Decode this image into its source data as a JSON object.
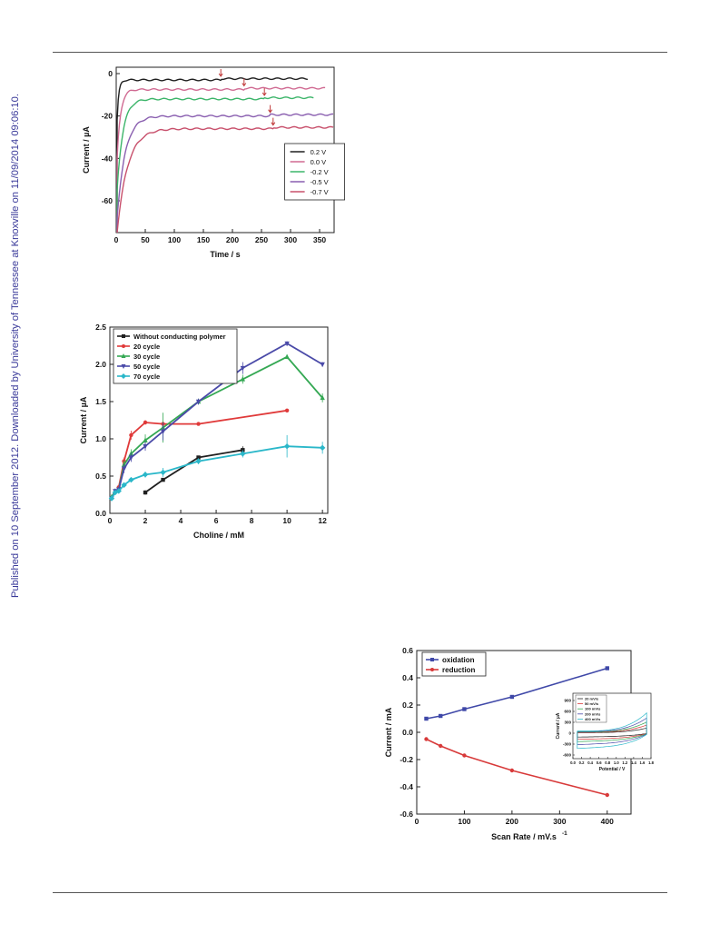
{
  "sidebar_text": "Published on 10 September 2012. Downloaded by University of Tennessee at Knoxville on 11/09/2014 09:06:10.",
  "colors": {
    "rule": "#555555",
    "sidebar_text": "#3b3b9a",
    "c_black": "#202020",
    "c_pink": "#d06a92",
    "c_green": "#3cb56a",
    "c_purple": "#8a5fb0",
    "c_rose": "#c8506c",
    "c_red": "#e03a3a",
    "c_green2": "#34a853",
    "c_blue": "#4a4aa8",
    "c_cyan": "#2ab7c9",
    "c_oxid": "#3f48a8",
    "c_red2": "#d83a3a",
    "arrow": "#c03a3a"
  },
  "chart_data": [
    {
      "type": "line",
      "xlabel": "Time / s",
      "ylabel": "Current / µA",
      "xlim": [
        0,
        375
      ],
      "ylim": [
        -75,
        3
      ],
      "xticks": [
        0,
        50,
        100,
        150,
        200,
        250,
        300,
        350
      ],
      "yticks": [
        0,
        -20,
        -40,
        -60
      ],
      "legend_position": "center-right",
      "series": [
        {
          "name": "0.2 V",
          "color_key": "c_black",
          "steady": -3,
          "initial": -22,
          "tau": 3,
          "end": 330,
          "arrow_x": 180
        },
        {
          "name": "0.0 V",
          "color_key": "c_pink",
          "steady": -7.5,
          "initial": -40,
          "tau": 6,
          "end": 360,
          "arrow_x": 220
        },
        {
          "name": "-0.2 V",
          "color_key": "c_green",
          "steady": -12,
          "initial": -55,
          "tau": 10,
          "end": 340,
          "arrow_x": 255
        },
        {
          "name": "-0.5 V",
          "color_key": "c_purple",
          "steady": -20,
          "initial": -68,
          "tau": 14,
          "end": 375,
          "arrow_x": 265
        },
        {
          "name": "-0.7 V",
          "color_key": "c_rose",
          "steady": -26,
          "initial": -75,
          "tau": 18,
          "end": 375,
          "arrow_x": 270
        }
      ]
    },
    {
      "type": "line",
      "xlabel": "Choline / mM",
      "ylabel": "Current / µA",
      "xlim": [
        0,
        12.3
      ],
      "ylim": [
        0,
        2.5
      ],
      "xticks": [
        0,
        2,
        4,
        6,
        8,
        10,
        12
      ],
      "yticks": [
        0.0,
        0.5,
        1.0,
        1.5,
        2.0,
        2.5
      ],
      "ytick_labels": [
        "0.0",
        "0.5",
        "1.0",
        "1.5",
        "2.0",
        "2.5"
      ],
      "legend_position": "top-left",
      "series": [
        {
          "name": "Without conducting polymer",
          "marker": "square",
          "color_key": "c_black",
          "x": [
            2,
            3,
            5,
            7.5
          ],
          "y": [
            0.28,
            0.45,
            0.75,
            0.85
          ],
          "err": [
            0.03,
            0.02,
            0.02,
            0.05
          ]
        },
        {
          "name": "20 cycle",
          "marker": "circle",
          "color_key": "c_red",
          "x": [
            0.5,
            0.8,
            1.2,
            2,
            3,
            5,
            10
          ],
          "y": [
            0.35,
            0.7,
            1.05,
            1.22,
            1.2,
            1.2,
            1.38
          ],
          "err": [
            0.03,
            0.05,
            0.06,
            0.03,
            0.02,
            0.02,
            0.02
          ]
        },
        {
          "name": "30 cycle",
          "marker": "triangle-up",
          "color_key": "c_green2",
          "x": [
            0.1,
            0.3,
            0.5,
            0.8,
            1.2,
            2,
            3,
            5,
            7.5,
            10,
            12
          ],
          "y": [
            0.22,
            0.3,
            0.32,
            0.65,
            0.8,
            0.98,
            1.15,
            1.5,
            1.8,
            2.1,
            1.55
          ],
          "err": [
            0.02,
            0.03,
            0.03,
            0.06,
            0.06,
            0.08,
            0.2,
            0.04,
            0.06,
            0.03,
            0.06
          ]
        },
        {
          "name": "50 cycle",
          "marker": "triangle-down",
          "color_key": "c_blue",
          "x": [
            0.1,
            0.3,
            0.5,
            0.8,
            1.2,
            2,
            3,
            5,
            7.5,
            10,
            12
          ],
          "y": [
            0.2,
            0.3,
            0.32,
            0.6,
            0.75,
            0.9,
            1.1,
            1.5,
            1.95,
            2.28,
            2.0
          ],
          "err": [
            0.02,
            0.03,
            0.03,
            0.06,
            0.06,
            0.06,
            0.12,
            0.04,
            0.08,
            0.03,
            0.03
          ]
        },
        {
          "name": "70 cycle",
          "marker": "diamond",
          "color_key": "c_cyan",
          "x": [
            0.1,
            0.3,
            0.5,
            0.8,
            1.2,
            2,
            3,
            5,
            7.5,
            10,
            12
          ],
          "y": [
            0.2,
            0.28,
            0.3,
            0.38,
            0.45,
            0.52,
            0.55,
            0.7,
            0.8,
            0.9,
            0.88
          ],
          "err": [
            0.02,
            0.03,
            0.03,
            0.03,
            0.03,
            0.04,
            0.06,
            0.04,
            0.05,
            0.15,
            0.08
          ]
        }
      ]
    },
    {
      "type": "line",
      "xlabel": "Scan Rate / mV.s",
      "xlabel_sup": "-1",
      "ylabel": "Current / mA",
      "xlim": [
        0,
        450
      ],
      "ylim": [
        -0.6,
        0.6
      ],
      "xticks": [
        0,
        100,
        200,
        300,
        400
      ],
      "yticks": [
        0.6,
        0.4,
        0.2,
        0.0,
        -0.2,
        -0.4,
        -0.6
      ],
      "ytick_labels": [
        "0.6",
        "0.4",
        "0.2",
        "0.0",
        "-0.2",
        "-0.4",
        "-0.6"
      ],
      "legend_position": "top-left",
      "series": [
        {
          "name": "oxidation",
          "marker": "square",
          "color_key": "c_oxid",
          "x": [
            20,
            50,
            100,
            200,
            400
          ],
          "y": [
            0.1,
            0.12,
            0.17,
            0.26,
            0.47
          ]
        },
        {
          "name": "reduction",
          "marker": "circle",
          "color_key": "c_red2",
          "x": [
            20,
            50,
            100,
            200,
            400
          ],
          "y": [
            -0.05,
            -0.1,
            -0.17,
            -0.28,
            -0.46
          ]
        }
      ],
      "inset": {
        "type": "line",
        "xlabel": "Potential / V",
        "ylabel": "Current / µA",
        "xlim": [
          0.0,
          1.8
        ],
        "ylim": [
          -700,
          1100
        ],
        "xticks": [
          0.0,
          0.2,
          0.4,
          0.6,
          0.8,
          1.0,
          1.2,
          1.4,
          1.6,
          1.8
        ],
        "xtick_labels": [
          "0.0",
          "0.2",
          "0.4",
          "0.6",
          "0.8",
          "1.0",
          "1.2",
          "1.4",
          "1.6",
          "1.8"
        ],
        "yticks": [
          900,
          600,
          300,
          0,
          -300,
          -600
        ],
        "ytick_labels": [
          "900",
          "600",
          "300",
          "0",
          "-300",
          "-600"
        ],
        "series": [
          {
            "name": "20 mV/s",
            "color_key": "c_black",
            "amp": 0.25
          },
          {
            "name": "50 mV/s",
            "color_key": "c_red2",
            "amp": 0.4
          },
          {
            "name": "100 mV/s",
            "color_key": "c_green2",
            "amp": 0.55
          },
          {
            "name": "200 mV/s",
            "color_key": "c_blue",
            "amp": 0.75
          },
          {
            "name": "400 mV/s",
            "color_key": "c_cyan",
            "amp": 1.0
          }
        ]
      }
    }
  ]
}
